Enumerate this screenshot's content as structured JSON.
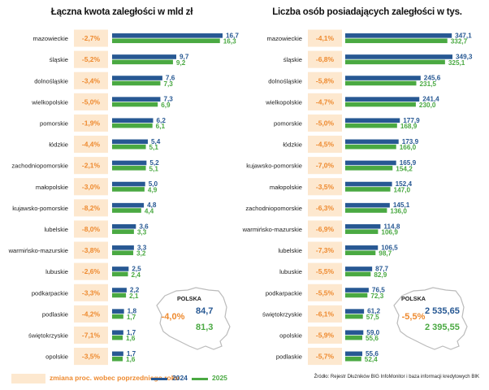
{
  "colors": {
    "series_2024": "#275893",
    "series_2025": "#4aa942",
    "change_bg": "#fde8cf",
    "change_text": "#ee8a2f",
    "map_outline": "#bbbbbb"
  },
  "legend": {
    "change_label": "zmiana proc. wobec poprzedniego roku",
    "year_2024": "2024",
    "year_2025": "2025"
  },
  "source": "Źródło: Rejestr Dłużników BIG InfoMonitor i baza informacji kredytowych BIK",
  "chart_data": [
    {
      "type": "bar",
      "title": "Łączna kwota zaległości w mld zł",
      "categories": [
        "mazowieckie",
        "śląskie",
        "dolnośląskie",
        "wielkopolskie",
        "pomorskie",
        "łódzkie",
        "zachodniopomorskie",
        "małopolskie",
        "kujawsko-pomorskie",
        "lubelskie",
        "warmińsko-mazurskie",
        "lubuskie",
        "podkarpackie",
        "podlaskie",
        "świętokrzyskie",
        "opolskie"
      ],
      "changes": [
        "-2,7%",
        "-5,2%",
        "-3,4%",
        "-5,0%",
        "-1,9%",
        "-4,4%",
        "-2,1%",
        "-3,0%",
        "-8,2%",
        "-8,0%",
        "-3,8%",
        "-2,6%",
        "-3,3%",
        "-4,2%",
        "-7,1%",
        "-3,5%"
      ],
      "series": [
        {
          "name": "2024",
          "values": [
            16.7,
            9.7,
            7.6,
            7.3,
            6.2,
            5.4,
            5.2,
            5.0,
            4.8,
            3.6,
            3.3,
            2.5,
            2.2,
            1.8,
            1.7,
            1.7
          ],
          "labels": [
            "16,7",
            "9,7",
            "7,6",
            "7,3",
            "6,2",
            "5,4",
            "5,2",
            "5,0",
            "4,8",
            "3,6",
            "3,3",
            "2,5",
            "2,2",
            "1,8",
            "1,7",
            "1,7"
          ]
        },
        {
          "name": "2025",
          "values": [
            16.3,
            9.2,
            7.3,
            6.9,
            6.1,
            5.1,
            5.1,
            4.9,
            4.4,
            3.3,
            3.2,
            2.4,
            2.1,
            1.7,
            1.6,
            1.6
          ],
          "labels": [
            "16,3",
            "9,2",
            "7,3",
            "6,9",
            "6,1",
            "5,1",
            "5,1",
            "4,9",
            "4,4",
            "3,3",
            "3,2",
            "2,4",
            "2,1",
            "1,7",
            "1,6",
            "1,6"
          ]
        }
      ],
      "xlim": [
        0,
        16.7
      ],
      "summary": {
        "region": "POLSKA",
        "change": "-4,0%",
        "value_2024": "84,7",
        "value_2025": "81,3"
      }
    },
    {
      "type": "bar",
      "title": "Liczba osób posiadających zaległości w tys.",
      "categories": [
        "mazowieckie",
        "śląskie",
        "dolnośląskie",
        "wielkopolskie",
        "pomorskie",
        "łódzkie",
        "kujawsko-pomorskie",
        "małopolskie",
        "zachodniopomorskie",
        "warmińsko-mazurskie",
        "lubelskie",
        "lubuskie",
        "podkarpackie",
        "świętokrzyskie",
        "opolskie",
        "podlaskie"
      ],
      "changes": [
        "-4,1%",
        "-6,8%",
        "-5,8%",
        "-4,7%",
        "-5,0%",
        "-4,5%",
        "-7,0%",
        "-3,5%",
        "-6,3%",
        "-6,9%",
        "-7,3%",
        "-5,5%",
        "-5,5%",
        "-6,1%",
        "-5,9%",
        "-5,7%"
      ],
      "series": [
        {
          "name": "2024",
          "values": [
            347.1,
            349.3,
            245.6,
            241.4,
            177.9,
            173.9,
            165.9,
            152.4,
            145.1,
            114.8,
            106.5,
            87.7,
            76.5,
            61.2,
            59.0,
            55.6
          ],
          "labels": [
            "347,1",
            "349,3",
            "245,6",
            "241,4",
            "177,9",
            "173,9",
            "165,9",
            "152,4",
            "145,1",
            "114,8",
            "106,5",
            "87,7",
            "76,5",
            "61,2",
            "59,0",
            "55,6"
          ]
        },
        {
          "name": "2025",
          "values": [
            332.7,
            325.1,
            231.5,
            230.0,
            168.9,
            166.0,
            154.2,
            147.0,
            136.0,
            106.9,
            98.7,
            82.9,
            72.3,
            57.5,
            55.6,
            52.4
          ],
          "labels": [
            "332,7",
            "325,1",
            "231,5",
            "230,0",
            "168,9",
            "166,0",
            "154,2",
            "147,0",
            "136,0",
            "106,9",
            "98,7",
            "82,9",
            "72,3",
            "57,5",
            "55,6",
            "52,4"
          ]
        }
      ],
      "xlim": [
        0,
        349.3
      ],
      "summary": {
        "region": "POLSKA",
        "change": "-5,5%",
        "value_2024": "2 535,65",
        "value_2025": "2 395,55"
      }
    }
  ]
}
